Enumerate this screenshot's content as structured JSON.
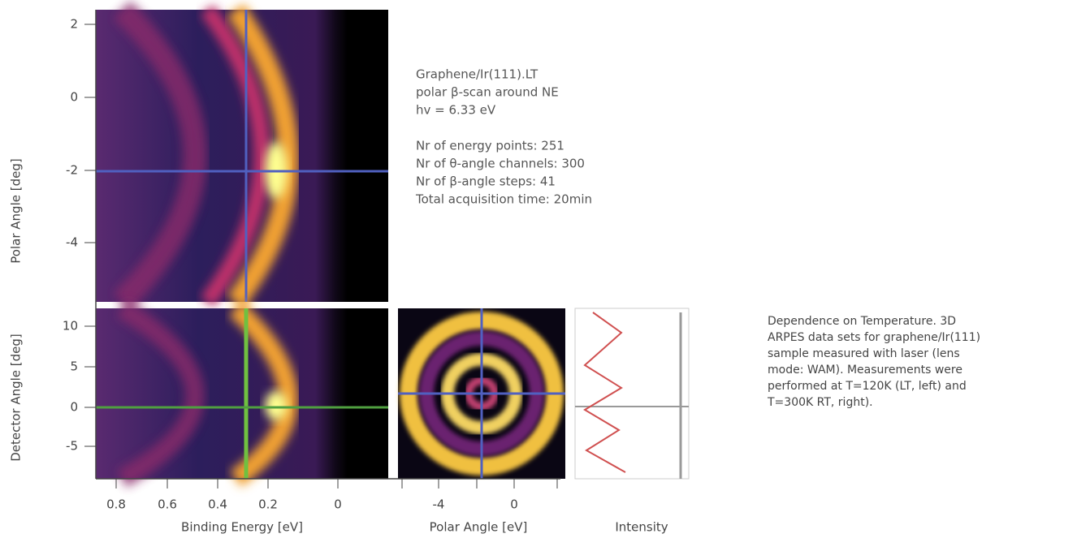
{
  "top_panel": {
    "y_label": "Polar Angle [deg]",
    "y_ticks": [
      2,
      0,
      -2,
      -4
    ]
  },
  "info": [
    "Graphene/Ir(111).LT",
    "polar β-scan around NE",
    "hv = 6.33 eV",
    "Nr of energy points: 251",
    "Nr of θ-angle channels: 300",
    "Nr of β-angle steps: 41",
    "Total acquisition time: 20min"
  ],
  "bottom_left_panel": {
    "y_label": "Detector Angle [deg]",
    "y_ticks": [
      10,
      5,
      0,
      -5
    ],
    "x_ticks": [
      0.8,
      0.6,
      0.4,
      0.2,
      0
    ],
    "x_label": "Binding Energy [eV]"
  },
  "middle_panel": {
    "x_ticks": [
      -4,
      0
    ],
    "x_label": "Polar Angle [eV]"
  },
  "right_panel": {
    "x_label": "Intensity"
  },
  "caption": [
    "Dependence on Temperature. 3D",
    "ARPES data sets for graphene/Ir(111)",
    "sample measured with laser (lens",
    "mode: WAM). Measurements were",
    "performed at T=120K (LT, left) and",
    "T=300K RT, right)."
  ]
}
